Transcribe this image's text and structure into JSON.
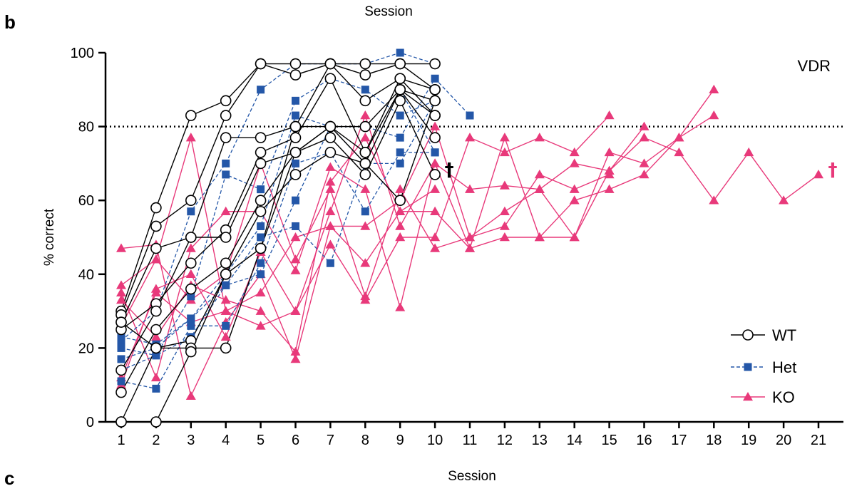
{
  "panels": {
    "top_letter": "b",
    "bottom_letter": "c"
  },
  "top_text": "Session",
  "bottom_text": "Session",
  "chart_data": {
    "type": "line",
    "title": "",
    "annotation": "VDR",
    "xlabel": "",
    "ylabel": "% correct",
    "xlim": [
      1,
      21
    ],
    "ylim": [
      0,
      100
    ],
    "xticks": [
      "1",
      "2",
      "3",
      "4",
      "5",
      "6",
      "7",
      "8",
      "9",
      "10",
      "11",
      "12",
      "13",
      "14",
      "15",
      "16",
      "17",
      "18",
      "19",
      "20",
      "21"
    ],
    "yticks": [
      "0",
      "20",
      "40",
      "60",
      "80",
      "100"
    ],
    "threshold": 80,
    "grid": false,
    "legend_position": "bottom-right",
    "groups": [
      {
        "name": "WT",
        "color": "#000000",
        "marker": "open-circle",
        "dash": "solid",
        "series": [
          [
            30,
            58,
            83,
            87,
            97,
            97,
            97,
            97,
            97,
            97
          ],
          [
            29,
            53,
            60,
            83,
            97,
            94,
            97,
            94,
            97,
            90
          ],
          [
            27,
            47,
            50,
            77,
            77,
            80,
            97,
            87,
            93,
            83
          ],
          [
            25,
            32,
            43,
            52,
            73,
            77,
            93,
            73,
            90,
            87
          ],
          [
            14,
            30,
            50,
            50,
            70,
            73,
            80,
            70,
            90,
            77
          ],
          [
            8,
            25,
            36,
            43,
            60,
            73,
            77,
            67,
            87,
            67
          ],
          [
            0,
            20,
            22,
            40,
            57,
            67,
            73,
            70,
            60,
            87
          ],
          [
            27,
            20,
            20,
            20,
            47,
            73,
            80,
            73,
            93,
            90
          ],
          [
            0,
            0,
            19,
            40,
            47,
            80,
            80,
            80,
            90,
            83
          ]
        ],
        "end_markers": [
          {
            "x": 10,
            "y": 67,
            "label": "†"
          }
        ]
      },
      {
        "name": "Het",
        "color": "#2457a8",
        "marker": "filled-square",
        "dash": "dashed",
        "series": [
          [
            22,
            30,
            57,
            70,
            90,
            97,
            97,
            97,
            100,
            97
          ],
          [
            20,
            18,
            34,
            67,
            63,
            87,
            93,
            90,
            83,
            87
          ],
          [
            17,
            20,
            28,
            40,
            53,
            83,
            80,
            80,
            77,
            93,
            83
          ],
          [
            11,
            9,
            26,
            26,
            43,
            70,
            73,
            57,
            73,
            73
          ],
          [
            23,
            21,
            28,
            37,
            50,
            53,
            43,
            70,
            70,
            87
          ],
          [
            14,
            18,
            23,
            37,
            40,
            60,
            80,
            70,
            90,
            73
          ]
        ]
      },
      {
        "name": "KO",
        "color": "#e8397a",
        "marker": "filled-triangle",
        "dash": "solid",
        "series": [
          [
            47,
            48,
            7,
            27,
            40,
            17,
            53,
            43,
            57,
            57,
            47,
            50,
            50,
            60,
            63,
            67,
            77,
            90
          ],
          [
            37,
            44,
            77,
            30,
            26,
            30,
            48,
            33,
            50,
            50,
            77,
            73,
            77,
            73,
            83
          ],
          [
            35,
            12,
            47,
            57,
            57,
            41,
            69,
            63,
            31,
            70,
            63,
            64,
            63,
            70,
            68,
            77,
            73,
            60,
            73,
            60,
            67
          ],
          [
            12,
            35,
            27,
            30,
            35,
            50,
            53,
            53,
            60,
            80,
            50,
            57,
            63,
            50,
            73,
            70,
            77,
            83
          ],
          [
            26,
            44,
            33,
            40,
            70,
            44,
            63,
            34,
            63,
            47,
            50,
            53,
            67,
            63,
            67
          ],
          [
            10,
            36,
            40,
            23,
            46,
            30,
            57,
            83,
            53,
            70,
            47,
            77,
            50,
            50,
            68,
            80
          ],
          [
            33,
            23,
            37,
            33,
            30,
            19,
            65,
            77,
            57,
            63
          ]
        ],
        "end_markers": [
          {
            "x": 21,
            "y": 67,
            "label": "†"
          }
        ]
      }
    ]
  }
}
